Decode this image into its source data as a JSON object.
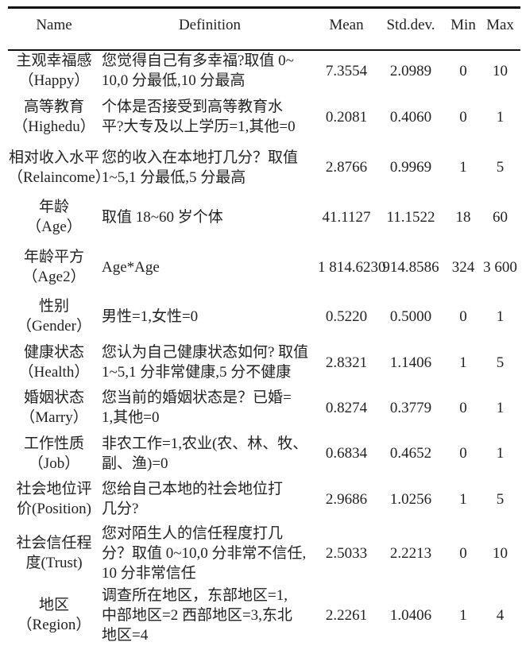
{
  "headers": {
    "name": "Name",
    "definition": "Definition",
    "mean": "Mean",
    "sd": "Std.dev.",
    "min": "Min",
    "max": "Max"
  },
  "rows": [
    {
      "name": [
        "主观幸福感",
        "（Happy）"
      ],
      "definition": [
        "您觉得自己有多幸福?取值 0~",
        "10,0 分最低,10 分最高"
      ],
      "mean": "7.3554",
      "sd": "2.0989",
      "min": "0",
      "max": "10"
    },
    {
      "name": [
        "高等教育",
        "（Highedu）"
      ],
      "definition": [
        "个体是否接受到高等教育水",
        "平?大专及以上学历=1,其他=0"
      ],
      "mean": "0.2081",
      "sd": "0.4060",
      "min": "0",
      "max": "1"
    },
    {
      "name": [
        "相对收入水平",
        "（Relaincome）"
      ],
      "definition": [
        "您的收入在本地打几分？取值",
        "1~5,1 分最低,5 分最高"
      ],
      "mean": "2.8766",
      "sd": "0.9969",
      "min": "1",
      "max": "5"
    },
    {
      "name": [
        "年龄",
        "（Age）"
      ],
      "definition": [
        "取值 18~60 岁个体"
      ],
      "mean": "41.1127",
      "sd": "11.1522",
      "min": "18",
      "max": "60"
    },
    {
      "name": [
        "年龄平方",
        "（Age2）"
      ],
      "definition": [
        "Age*Age"
      ],
      "mean": "1 814.6230",
      "sd": "914.8586",
      "min": "324",
      "max": "3 600"
    },
    {
      "name": [
        "性别",
        "（Gender）"
      ],
      "definition": [
        "男性=1,女性=0"
      ],
      "mean": "0.5220",
      "sd": "0.5000",
      "min": "0",
      "max": "1"
    },
    {
      "name": [
        "健康状态",
        "（Health）"
      ],
      "definition": [
        "您认为自己健康状态如何? 取值",
        "1~5,1 分非常健康,5 分不健康"
      ],
      "mean": "2.8321",
      "sd": "1.1406",
      "min": "1",
      "max": "5"
    },
    {
      "name": [
        "婚姻状态",
        "（Marry）"
      ],
      "definition": [
        "您当前的婚姻状态是？已婚=",
        "1,其他=0"
      ],
      "mean": "0.8274",
      "sd": "0.3779",
      "min": "0",
      "max": "1"
    },
    {
      "name": [
        "工作性质",
        "（Job）"
      ],
      "definition": [
        "非农工作=1,农业(农、林、牧、",
        "副、渔)=0"
      ],
      "mean": "0.6834",
      "sd": "0.4652",
      "min": "0",
      "max": "1"
    },
    {
      "name": [
        "社会地位评",
        "价(Position)"
      ],
      "definition": [
        "您给自己本地的社会地位打",
        "几分?"
      ],
      "mean": "2.9686",
      "sd": "1.0256",
      "min": "1",
      "max": "5"
    },
    {
      "name": [
        "社会信任程",
        "度(Trust)"
      ],
      "definition": [
        "您对陌生人的信任程度打几",
        "分？取值 0~10,0 分非常不信任,",
        "10 分非常信任"
      ],
      "mean": "2.5033",
      "sd": "2.2213",
      "min": "0",
      "max": "10"
    },
    {
      "name": [
        "地区",
        "（Region）"
      ],
      "definition": [
        "调查所在地区，东部地区=1,",
        "中部地区=2 西部地区=3,东北",
        "地区=4"
      ],
      "mean": "2.2261",
      "sd": "1.0406",
      "min": "1",
      "max": "4"
    }
  ]
}
